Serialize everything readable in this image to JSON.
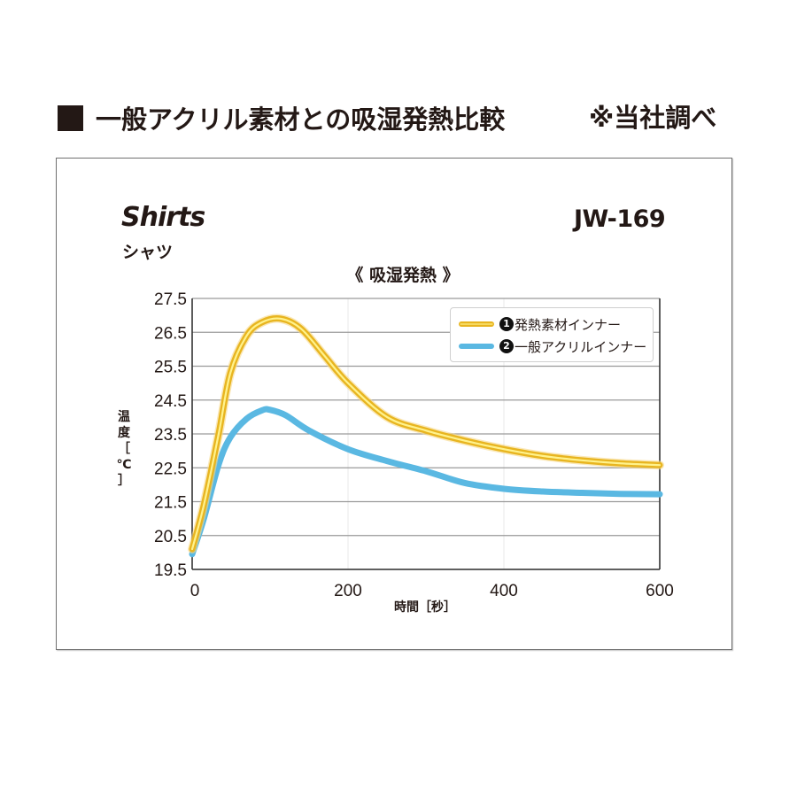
{
  "heading": {
    "title": "一般アクリル素材との吸湿発熱比較",
    "note": "※当社調べ"
  },
  "product": {
    "name_en": "Shirts",
    "name_jp": "シャツ",
    "code": "JW-169"
  },
  "chart_data": {
    "type": "line",
    "title": "《 吸湿発熱 》",
    "xlabel": "時間［秒］",
    "ylabel": "温度［℃］",
    "xlim": [
      0,
      600
    ],
    "ylim": [
      19.5,
      27.5
    ],
    "xticks": [
      0,
      200,
      400,
      600
    ],
    "yticks": [
      19.5,
      20.5,
      21.5,
      22.5,
      23.5,
      24.5,
      25.5,
      26.5,
      27.5
    ],
    "grid": true,
    "legend_position": "upper right",
    "series": [
      {
        "name": "発熱素材インナー",
        "number": "1",
        "color": "#E8B520",
        "highlight": "#FFF28C",
        "x": [
          0,
          15,
          34,
          49,
          70,
          90,
          114,
          140,
          170,
          200,
          250,
          300,
          350,
          400,
          450,
          500,
          550,
          600
        ],
        "y": [
          20.1,
          21.4,
          23.5,
          25.3,
          26.4,
          26.8,
          26.9,
          26.6,
          25.8,
          25.0,
          24.0,
          23.6,
          23.3,
          23.05,
          22.85,
          22.72,
          22.63,
          22.58
        ]
      },
      {
        "name": "一般アクリルインナー",
        "number": "2",
        "color": "#5AB8E2",
        "x": [
          0,
          15,
          34,
          49,
          70,
          90,
          100,
          120,
          150,
          200,
          250,
          300,
          350,
          400,
          450,
          500,
          550,
          600
        ],
        "y": [
          19.95,
          21.0,
          22.6,
          23.4,
          23.95,
          24.2,
          24.21,
          24.05,
          23.6,
          23.05,
          22.7,
          22.4,
          22.05,
          21.88,
          21.8,
          21.76,
          21.73,
          21.72
        ]
      }
    ]
  }
}
